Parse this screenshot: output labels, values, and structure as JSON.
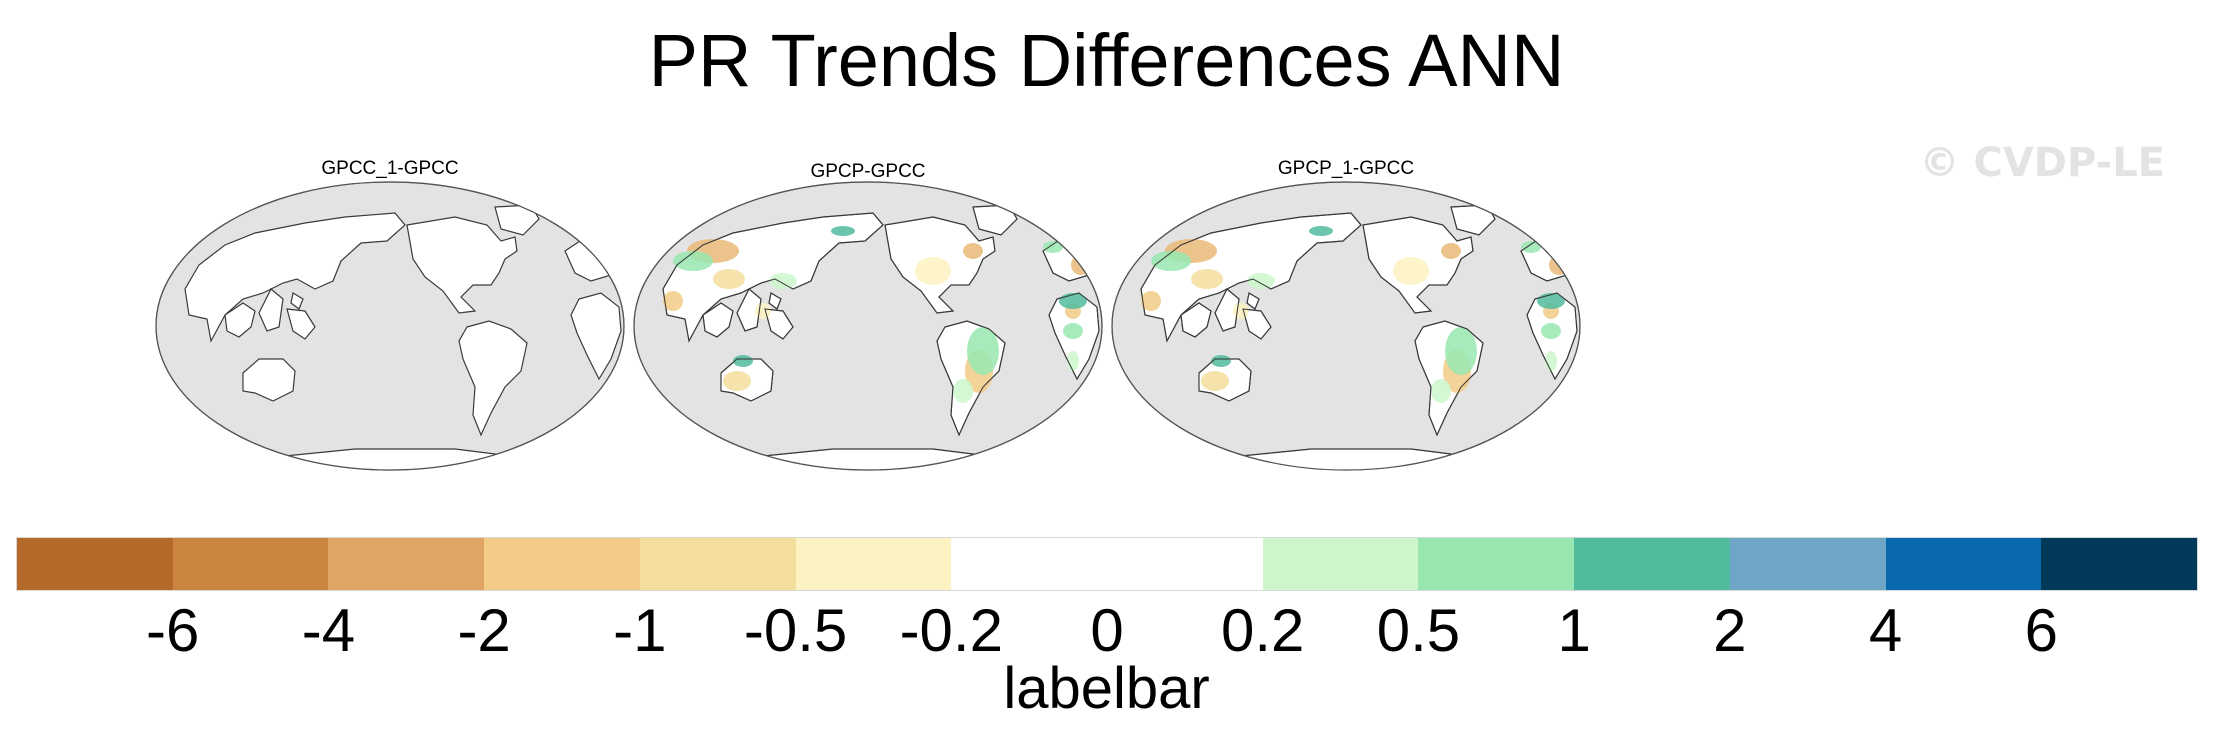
{
  "title": "PR Trends Differences ANN",
  "watermark": "© CVDP-LE",
  "panels": [
    {
      "name": "GPCC_1-GPCC",
      "pattern": "none"
    },
    {
      "name": "GPCP-GPCC",
      "pattern": "mixed"
    },
    {
      "name": "GPCP_1-GPCC",
      "pattern": "mixed"
    }
  ],
  "labelbar": {
    "title": "labelbar",
    "tick_labels": [
      "-6",
      "-4",
      "-2",
      "-1",
      "-0.5",
      "-0.2",
      "0",
      "0.2",
      "0.5",
      "1",
      "2",
      "4",
      "6"
    ],
    "colors": [
      "#b5692a",
      "#cc8540",
      "#e0a463",
      "#f2cb86",
      "#f4de9d",
      "#fdf2c1",
      "#ffffff",
      "#ffffff",
      "#cdf7cb",
      "#98e7b1",
      "#51bb9e",
      "#6fa6c8",
      "#0869ad",
      "#023858"
    ]
  }
}
